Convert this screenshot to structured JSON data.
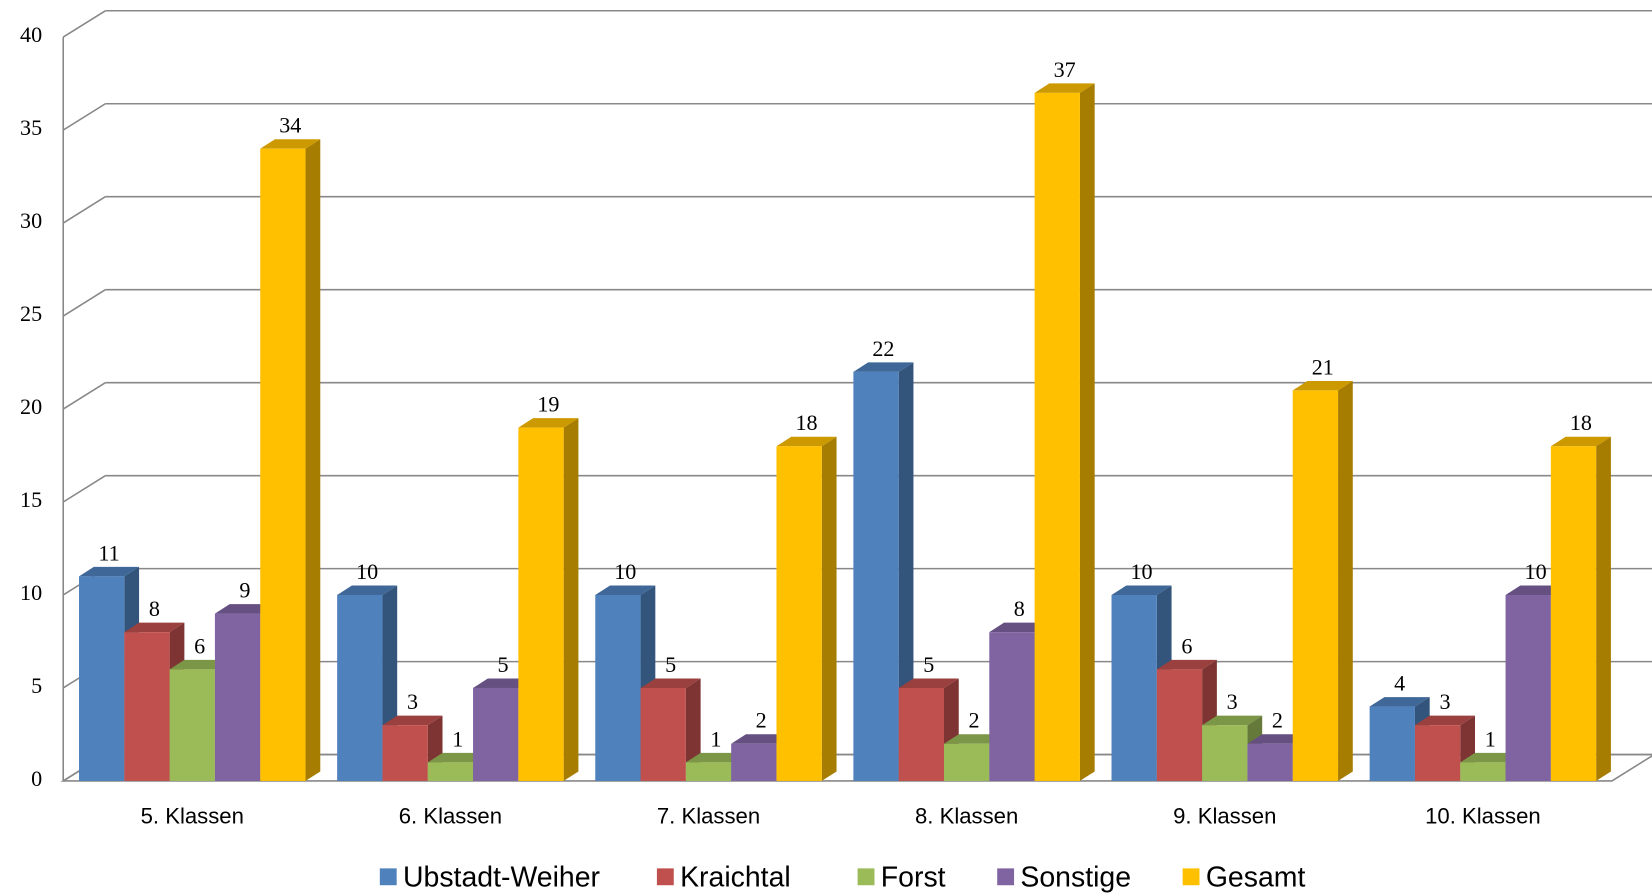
{
  "chart_data": {
    "type": "bar3d",
    "categories": [
      "5. Klassen",
      "6. Klassen",
      "7. Klassen",
      "8. Klassen",
      "9. Klassen",
      "10. Klassen"
    ],
    "series": [
      {
        "name": "Ubstadt-Weiher",
        "color": "#4f81bd",
        "values": [
          11,
          10,
          10,
          22,
          10,
          4
        ]
      },
      {
        "name": "Kraichtal",
        "color": "#c0504d",
        "values": [
          8,
          3,
          5,
          5,
          6,
          3
        ]
      },
      {
        "name": "Forst",
        "color": "#9bbb59",
        "values": [
          6,
          1,
          1,
          2,
          3,
          1
        ]
      },
      {
        "name": "Sonstige",
        "color": "#8064a2",
        "values": [
          9,
          5,
          2,
          8,
          2,
          10
        ]
      },
      {
        "name": "Gesamt",
        "color": "#ffc000",
        "values": [
          34,
          19,
          18,
          37,
          21,
          18
        ]
      }
    ],
    "ylim": [
      0,
      40
    ],
    "yticks": [
      0,
      5,
      10,
      15,
      20,
      25,
      30,
      35,
      40
    ],
    "grid": true,
    "legend": "bottom"
  }
}
